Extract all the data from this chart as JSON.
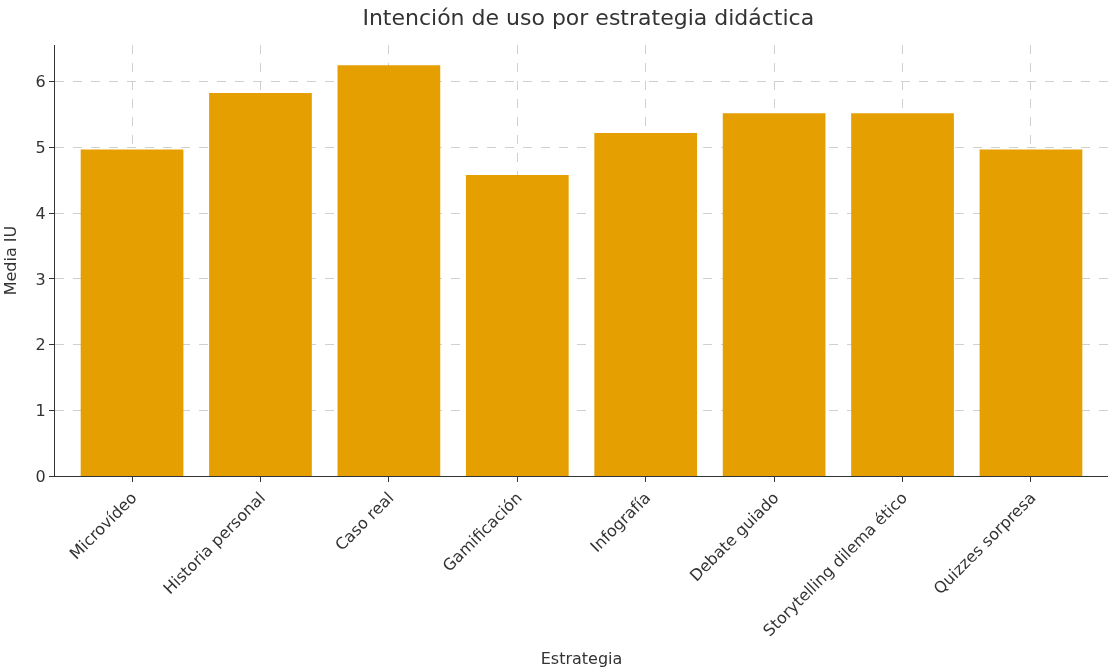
{
  "chart_data": {
    "type": "bar",
    "title": "Intención de uso por estrategia didáctica",
    "xlabel": "Estrategia",
    "ylabel": "Media IU",
    "categories": [
      "Microvídeo",
      "Historia personal",
      "Caso real",
      "Gamificación",
      "Infografía",
      "Debate guiado",
      "Storytelling dilema ético",
      "Quizzes sorpresa"
    ],
    "values": [
      4.97,
      5.83,
      6.25,
      4.58,
      5.22,
      5.52,
      5.52,
      4.97
    ],
    "color": "#e69f00",
    "ylim": [
      0,
      6.56
    ],
    "yticks": [
      0,
      1,
      2,
      3,
      4,
      5,
      6
    ],
    "grid": true
  }
}
